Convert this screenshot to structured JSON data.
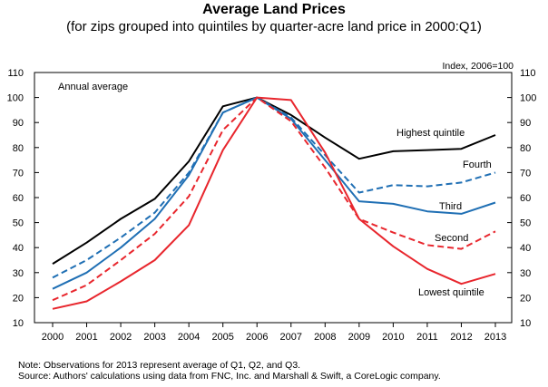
{
  "title": "Average Land Prices",
  "subtitle": "(for zips grouped into quintiles by quarter-acre land price in 2000:Q1)",
  "chart_data": {
    "type": "line",
    "x": [
      "2000",
      "2001",
      "2002",
      "2003",
      "2004",
      "2005",
      "2006",
      "2007",
      "2008",
      "2009",
      "2010",
      "2011",
      "2012",
      "2013"
    ],
    "ylim": [
      10,
      110
    ],
    "yticks": [
      10,
      20,
      30,
      40,
      50,
      60,
      70,
      80,
      90,
      100,
      110
    ],
    "index_label": "Index, 2006=100",
    "annotation": "Annual average",
    "grid": false,
    "series": [
      {
        "name": "Highest quintile",
        "color": "#000000",
        "dash": false,
        "values": [
          33.5,
          42,
          51.5,
          59.5,
          74.5,
          96.5,
          100,
          93,
          84,
          75.5,
          78.5,
          79,
          79.5,
          85
        ]
      },
      {
        "name": "Fourth",
        "color": "#1f6fb4",
        "dash": true,
        "values": [
          28,
          35,
          44,
          54,
          70,
          94,
          100,
          92,
          77,
          62,
          65,
          64.5,
          66,
          70
        ]
      },
      {
        "name": "Third",
        "color": "#1f6fb4",
        "dash": false,
        "values": [
          23.5,
          30,
          40,
          51.5,
          69,
          94,
          100,
          91.5,
          75,
          58.5,
          57.5,
          54.5,
          53.5,
          58
        ]
      },
      {
        "name": "Second",
        "color": "#e8262d",
        "dash": true,
        "values": [
          19,
          25,
          35,
          45.5,
          60.5,
          87,
          100,
          90.5,
          72,
          51.5,
          46,
          41,
          39.5,
          46.5
        ]
      },
      {
        "name": "Lowest quintile",
        "color": "#e8262d",
        "dash": false,
        "values": [
          15.5,
          18.5,
          26.5,
          35,
          49,
          79,
          100,
          99,
          78,
          51.5,
          40.5,
          31.5,
          25.5,
          29.5
        ]
      }
    ]
  },
  "footnote": {
    "note": "Note: Observations for 2013 represent average of Q1, Q2, and Q3.",
    "source": "Source: Authors' calculations using data from FNC, Inc. and Marshall & Swift, a CoreLogic company."
  }
}
